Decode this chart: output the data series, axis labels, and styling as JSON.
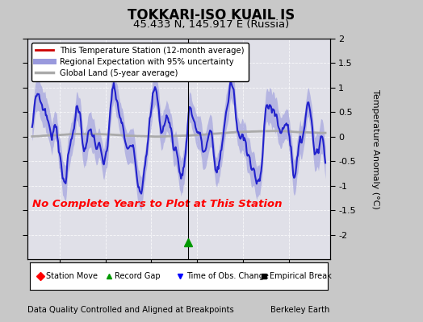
{
  "title": "TOKKARI-ISO KUAIL IS",
  "subtitle": "45.433 N, 145.917 E (Russia)",
  "ylabel": "Temperature Anomaly (°C)",
  "xlabel_left": "Data Quality Controlled and Aligned at Breakpoints",
  "xlabel_right": "Berkeley Earth",
  "no_data_text": "No Complete Years to Plot at This Station",
  "xmin": 1941.5,
  "xmax": 1974.5,
  "ymin": -2.5,
  "ymax": 2.0,
  "yticks": [
    -2.0,
    -1.5,
    -1.0,
    -0.5,
    0.0,
    0.5,
    1.0,
    1.5,
    2.0
  ],
  "ytick_labels": [
    "-2",
    "-1.5",
    "-1",
    "-0.5",
    "0",
    "0.5",
    "1",
    "1.5",
    "2"
  ],
  "xticks": [
    1945,
    1950,
    1955,
    1960,
    1965,
    1970
  ],
  "bg_color": "#c8c8c8",
  "plot_bg_color": "#e0e0e8",
  "regional_color": "#2222cc",
  "regional_fill_color": "#9999dd",
  "station_color": "#cc0000",
  "global_color": "#aaaaaa",
  "global_lw": 2.0,
  "regional_lw": 1.5,
  "station_lw": 1.2,
  "vertical_line_x": 1959.0,
  "record_gap_x": 1959.0,
  "record_gap_y": -2.15
}
